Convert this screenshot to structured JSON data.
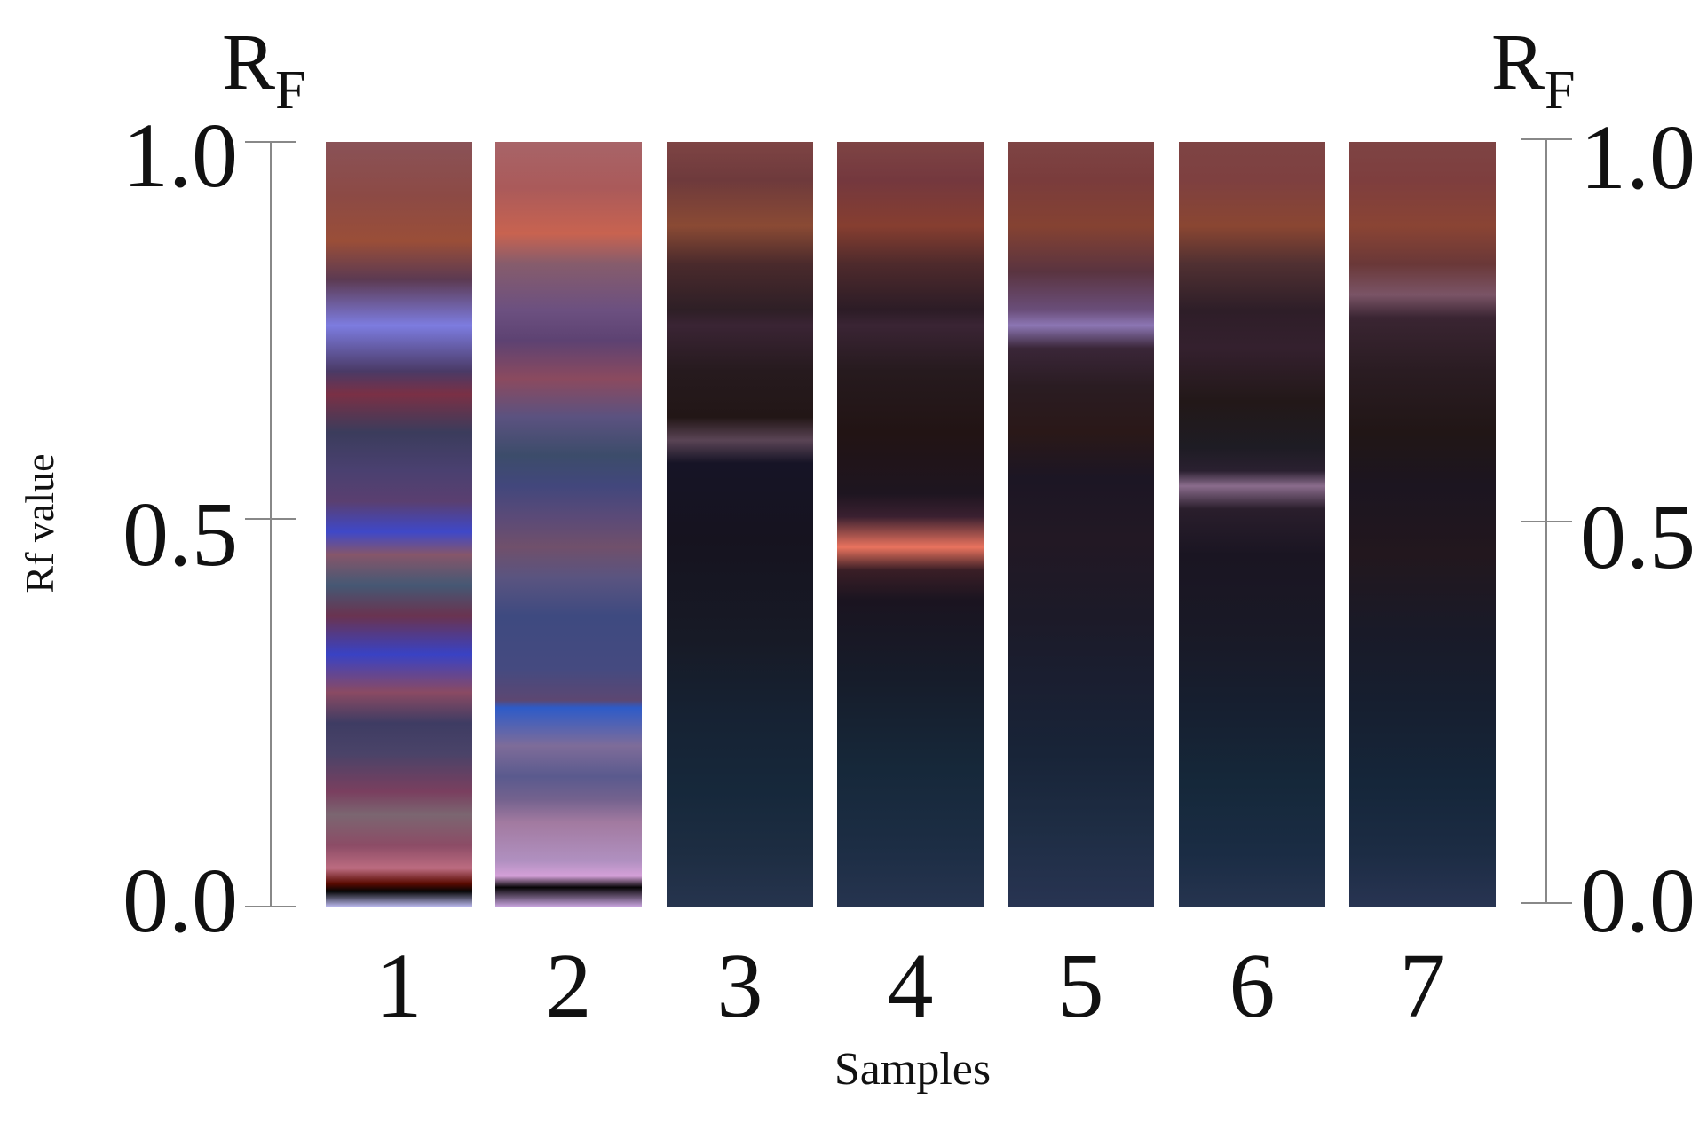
{
  "chart_data": {
    "type": "heatmap",
    "title": "",
    "xlabel": "Samples",
    "ylabel": "Rf value",
    "axis_title_left": {
      "main": "R",
      "sub": "F"
    },
    "axis_title_right": {
      "main": "R",
      "sub": "F"
    },
    "ylim": [
      0,
      1
    ],
    "y_ticks": [
      "0.0",
      "0.5",
      "1.0"
    ],
    "categories": [
      "1",
      "2",
      "3",
      "4",
      "5",
      "6",
      "7"
    ],
    "lanes": [
      {
        "name": "1",
        "bands": [
          {
            "rf": 1.0,
            "color": "#8a5257"
          },
          {
            "rf": 0.93,
            "color": "#8c4a45"
          },
          {
            "rf": 0.87,
            "color": "#9a4e38"
          },
          {
            "rf": 0.82,
            "color": "#5c3a52"
          },
          {
            "rf": 0.76,
            "color": "#7d7ce0"
          },
          {
            "rf": 0.7,
            "color": "#4a3a66"
          },
          {
            "rf": 0.67,
            "color": "#7a3045"
          },
          {
            "rf": 0.62,
            "color": "#3b3c5c"
          },
          {
            "rf": 0.57,
            "color": "#4a4070"
          },
          {
            "rf": 0.53,
            "color": "#5a3f70"
          },
          {
            "rf": 0.49,
            "color": "#3f48c8"
          },
          {
            "rf": 0.46,
            "color": "#86566a"
          },
          {
            "rf": 0.42,
            "color": "#455874"
          },
          {
            "rf": 0.38,
            "color": "#6a3350"
          },
          {
            "rf": 0.33,
            "color": "#3942c4"
          },
          {
            "rf": 0.28,
            "color": "#8a4a63"
          },
          {
            "rf": 0.24,
            "color": "#3e3c63"
          },
          {
            "rf": 0.2,
            "color": "#4a4368"
          },
          {
            "rf": 0.15,
            "color": "#7a3f5f"
          },
          {
            "rf": 0.12,
            "color": "#7b6671"
          },
          {
            "rf": 0.08,
            "color": "#8c4c66"
          },
          {
            "rf": 0.05,
            "color": "#bc6c80"
          },
          {
            "rf": 0.03,
            "color": "#5a0a00"
          },
          {
            "rf": 0.02,
            "color": "#050505"
          },
          {
            "rf": 0.0,
            "color": "#b8b6ea"
          }
        ]
      },
      {
        "name": "2",
        "bands": [
          {
            "rf": 1.0,
            "color": "#a86468"
          },
          {
            "rf": 0.94,
            "color": "#aa5a5a"
          },
          {
            "rf": 0.88,
            "color": "#c86350"
          },
          {
            "rf": 0.84,
            "color": "#865c6c"
          },
          {
            "rf": 0.78,
            "color": "#6c5080"
          },
          {
            "rf": 0.74,
            "color": "#5d4272"
          },
          {
            "rf": 0.69,
            "color": "#8b4a5f"
          },
          {
            "rf": 0.64,
            "color": "#5b5280"
          },
          {
            "rf": 0.59,
            "color": "#3c4c6a"
          },
          {
            "rf": 0.55,
            "color": "#42477c"
          },
          {
            "rf": 0.51,
            "color": "#5a4a78"
          },
          {
            "rf": 0.47,
            "color": "#70506b"
          },
          {
            "rf": 0.43,
            "color": "#5a5480"
          },
          {
            "rf": 0.38,
            "color": "#3e4a80"
          },
          {
            "rf": 0.31,
            "color": "#454a80"
          },
          {
            "rf": 0.27,
            "color": "#5c4772"
          },
          {
            "rf": 0.26,
            "color": "#2e5bc8"
          },
          {
            "rf": 0.21,
            "color": "#7e6c99"
          },
          {
            "rf": 0.17,
            "color": "#5a5a8e"
          },
          {
            "rf": 0.14,
            "color": "#74628e"
          },
          {
            "rf": 0.11,
            "color": "#a27aa0"
          },
          {
            "rf": 0.06,
            "color": "#b090c0"
          },
          {
            "rf": 0.04,
            "color": "#d4a0d8"
          },
          {
            "rf": 0.025,
            "color": "#060406"
          },
          {
            "rf": 0.0,
            "color": "#c6a3dc"
          }
        ]
      },
      {
        "name": "3",
        "bands": [
          {
            "rf": 1.0,
            "color": "#7e4444"
          },
          {
            "rf": 0.95,
            "color": "#6e3a3c"
          },
          {
            "rf": 0.89,
            "color": "#8a4a34"
          },
          {
            "rf": 0.84,
            "color": "#4a2a2c"
          },
          {
            "rf": 0.78,
            "color": "#2e1f26"
          },
          {
            "rf": 0.76,
            "color": "#3a2434"
          },
          {
            "rf": 0.7,
            "color": "#261a1e"
          },
          {
            "rf": 0.64,
            "color": "#221616"
          },
          {
            "rf": 0.61,
            "color": "#5a4455"
          },
          {
            "rf": 0.58,
            "color": "#161426"
          },
          {
            "rf": 0.48,
            "color": "#16131f"
          },
          {
            "rf": 0.35,
            "color": "#171a26"
          },
          {
            "rf": 0.25,
            "color": "#162233"
          },
          {
            "rf": 0.15,
            "color": "#16283b"
          },
          {
            "rf": 0.07,
            "color": "#1d2d42"
          },
          {
            "rf": 0.0,
            "color": "#26344e"
          }
        ]
      },
      {
        "name": "4",
        "bands": [
          {
            "rf": 1.0,
            "color": "#7e4444"
          },
          {
            "rf": 0.95,
            "color": "#74383e"
          },
          {
            "rf": 0.89,
            "color": "#863e30"
          },
          {
            "rf": 0.84,
            "color": "#4e2a2c"
          },
          {
            "rf": 0.78,
            "color": "#2c1c26"
          },
          {
            "rf": 0.76,
            "color": "#3a2434"
          },
          {
            "rf": 0.7,
            "color": "#261a1e"
          },
          {
            "rf": 0.62,
            "color": "#221414"
          },
          {
            "rf": 0.54,
            "color": "#1e1520"
          },
          {
            "rf": 0.51,
            "color": "#3a2030"
          },
          {
            "rf": 0.47,
            "color": "#e9735e"
          },
          {
            "rf": 0.44,
            "color": "#3a1e26"
          },
          {
            "rf": 0.4,
            "color": "#1a1420"
          },
          {
            "rf": 0.3,
            "color": "#161c2a"
          },
          {
            "rf": 0.18,
            "color": "#16283a"
          },
          {
            "rf": 0.08,
            "color": "#1c2d44"
          },
          {
            "rf": 0.0,
            "color": "#26344f"
          }
        ]
      },
      {
        "name": "5",
        "bands": [
          {
            "rf": 1.0,
            "color": "#7e4444"
          },
          {
            "rf": 0.95,
            "color": "#7a3c3c"
          },
          {
            "rf": 0.89,
            "color": "#854232"
          },
          {
            "rf": 0.83,
            "color": "#5a3440"
          },
          {
            "rf": 0.78,
            "color": "#6a4e7a"
          },
          {
            "rf": 0.76,
            "color": "#8c76b4"
          },
          {
            "rf": 0.73,
            "color": "#3a2638"
          },
          {
            "rf": 0.68,
            "color": "#2a1c22"
          },
          {
            "rf": 0.62,
            "color": "#2a1818"
          },
          {
            "rf": 0.56,
            "color": "#1c1624"
          },
          {
            "rf": 0.48,
            "color": "#221824"
          },
          {
            "rf": 0.38,
            "color": "#1c1a28"
          },
          {
            "rf": 0.3,
            "color": "#1a1e30"
          },
          {
            "rf": 0.2,
            "color": "#182438"
          },
          {
            "rf": 0.1,
            "color": "#1e2d44"
          },
          {
            "rf": 0.0,
            "color": "#283452"
          }
        ]
      },
      {
        "name": "6",
        "bands": [
          {
            "rf": 1.0,
            "color": "#7e4444"
          },
          {
            "rf": 0.95,
            "color": "#7e4040"
          },
          {
            "rf": 0.89,
            "color": "#8a4632"
          },
          {
            "rf": 0.84,
            "color": "#503032"
          },
          {
            "rf": 0.78,
            "color": "#2e1e28"
          },
          {
            "rf": 0.73,
            "color": "#34202e"
          },
          {
            "rf": 0.66,
            "color": "#221818"
          },
          {
            "rf": 0.6,
            "color": "#1e1c24"
          },
          {
            "rf": 0.57,
            "color": "#2a2030"
          },
          {
            "rf": 0.55,
            "color": "#8a6c8c"
          },
          {
            "rf": 0.52,
            "color": "#2a1e2c"
          },
          {
            "rf": 0.46,
            "color": "#1a1522"
          },
          {
            "rf": 0.36,
            "color": "#191926"
          },
          {
            "rf": 0.26,
            "color": "#161f30"
          },
          {
            "rf": 0.16,
            "color": "#15283a"
          },
          {
            "rf": 0.07,
            "color": "#1a2c44"
          },
          {
            "rf": 0.0,
            "color": "#26344f"
          }
        ]
      },
      {
        "name": "7",
        "bands": [
          {
            "rf": 1.0,
            "color": "#7e4444"
          },
          {
            "rf": 0.95,
            "color": "#7e3e3e"
          },
          {
            "rf": 0.89,
            "color": "#8a4434"
          },
          {
            "rf": 0.84,
            "color": "#6a3838"
          },
          {
            "rf": 0.8,
            "color": "#7a5466"
          },
          {
            "rf": 0.77,
            "color": "#3a2532"
          },
          {
            "rf": 0.7,
            "color": "#2a1c22"
          },
          {
            "rf": 0.62,
            "color": "#211616"
          },
          {
            "rf": 0.55,
            "color": "#1c1520"
          },
          {
            "rf": 0.46,
            "color": "#22171e"
          },
          {
            "rf": 0.36,
            "color": "#191a28"
          },
          {
            "rf": 0.26,
            "color": "#161f30"
          },
          {
            "rf": 0.16,
            "color": "#15263a"
          },
          {
            "rf": 0.07,
            "color": "#1c2c44"
          },
          {
            "rf": 0.0,
            "color": "#283452"
          }
        ]
      }
    ]
  }
}
